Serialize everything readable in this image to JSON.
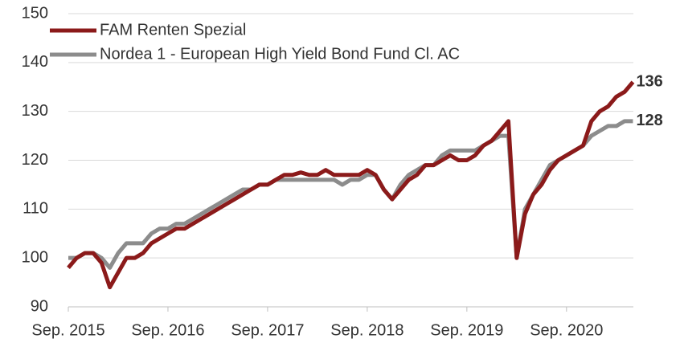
{
  "chart_data": {
    "type": "line",
    "x": [
      "2015-09",
      "2015-10",
      "2015-11",
      "2015-12",
      "2016-01",
      "2016-02",
      "2016-03",
      "2016-04",
      "2016-05",
      "2016-06",
      "2016-07",
      "2016-08",
      "2016-09",
      "2016-10",
      "2016-11",
      "2016-12",
      "2017-01",
      "2017-02",
      "2017-03",
      "2017-04",
      "2017-05",
      "2017-06",
      "2017-07",
      "2017-08",
      "2017-09",
      "2017-10",
      "2017-11",
      "2017-12",
      "2018-01",
      "2018-02",
      "2018-03",
      "2018-04",
      "2018-05",
      "2018-06",
      "2018-07",
      "2018-08",
      "2018-09",
      "2018-10",
      "2018-11",
      "2018-12",
      "2019-01",
      "2019-02",
      "2019-03",
      "2019-04",
      "2019-05",
      "2019-06",
      "2019-07",
      "2019-08",
      "2019-09",
      "2019-10",
      "2019-11",
      "2019-12",
      "2020-01",
      "2020-02",
      "2020-03",
      "2020-04",
      "2020-05",
      "2020-06",
      "2020-07",
      "2020-08",
      "2020-09",
      "2020-10",
      "2020-11",
      "2020-12",
      "2021-01",
      "2021-02",
      "2021-03",
      "2021-04",
      "2021-05"
    ],
    "series": [
      {
        "name": "FAM Renten Spezial",
        "color": "#8b1a1a",
        "values": [
          98,
          100,
          101,
          101,
          99,
          94,
          97,
          100,
          100,
          101,
          103,
          104,
          105,
          106,
          106,
          107,
          108,
          109,
          110,
          111,
          112,
          113,
          114,
          115,
          115,
          116,
          117,
          117,
          117.5,
          117,
          117,
          118,
          117,
          117,
          117,
          117,
          118,
          117,
          114,
          112,
          114,
          116,
          117,
          119,
          119,
          120,
          121,
          120,
          120,
          121,
          123,
          124,
          126,
          128,
          100,
          109,
          113,
          115,
          118,
          120,
          121,
          122,
          123,
          128,
          130,
          131,
          133,
          134,
          136
        ]
      },
      {
        "name": "Nordea 1 - European High Yield Bond Fund Cl. AC",
        "color": "#8c8c8c",
        "values": [
          100,
          100,
          101,
          101,
          100,
          98,
          101,
          103,
          103,
          103,
          105,
          106,
          106,
          107,
          107,
          108,
          109,
          110,
          111,
          112,
          113,
          114,
          114,
          115,
          115,
          116,
          116,
          116,
          116,
          116,
          116,
          116,
          116,
          115,
          116,
          116,
          117,
          117,
          114,
          112,
          115,
          117,
          118,
          119,
          119,
          121,
          122,
          122,
          122,
          122,
          123,
          124,
          125,
          125,
          100,
          110,
          113,
          116,
          119,
          120,
          121,
          122,
          123,
          125,
          126,
          127,
          127,
          128,
          128
        ]
      }
    ],
    "ylim": [
      90,
      150
    ],
    "yticks": [
      90,
      100,
      110,
      120,
      130,
      140,
      150
    ],
    "xticks": [
      {
        "value": "2015-09",
        "label": "Sep. 2015"
      },
      {
        "value": "2016-09",
        "label": "Sep. 2016"
      },
      {
        "value": "2017-09",
        "label": "Sep. 2017"
      },
      {
        "value": "2018-09",
        "label": "Sep. 2018"
      },
      {
        "value": "2019-09",
        "label": "Sep. 2019"
      },
      {
        "value": "2020-09",
        "label": "Sep. 2020"
      }
    ],
    "grid": true,
    "legend": "top-left"
  }
}
